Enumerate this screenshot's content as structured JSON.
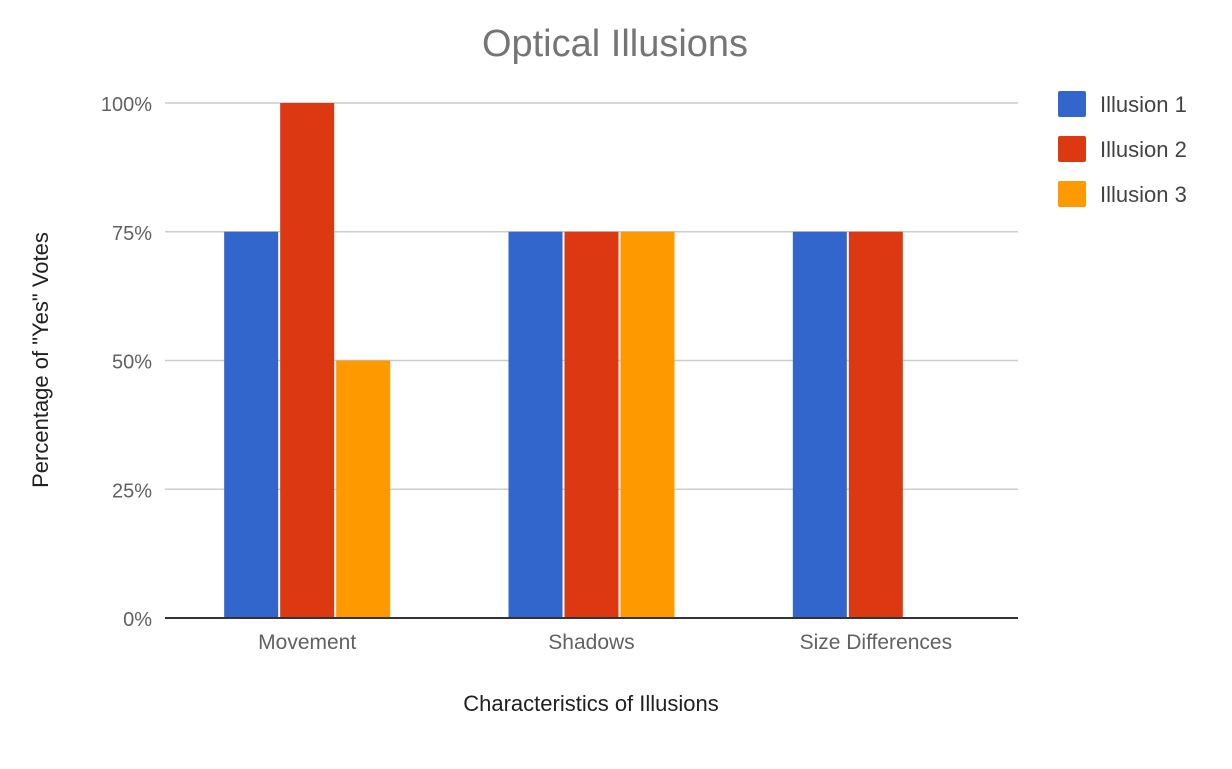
{
  "chart_data": {
    "type": "bar",
    "title": "Optical Illusions",
    "xlabel": "Characteristics of Illusions",
    "ylabel": "Percentage of \"Yes\" Votes",
    "categories": [
      "Movement",
      "Shadows",
      "Size Differences"
    ],
    "series": [
      {
        "name": "Illusion 1",
        "values": [
          75,
          75,
          75
        ],
        "color": "#3366cc"
      },
      {
        "name": "Illusion 2",
        "values": [
          100,
          75,
          75
        ],
        "color": "#dc3912"
      },
      {
        "name": "Illusion 3",
        "values": [
          50,
          75,
          0
        ],
        "color": "#ff9900"
      }
    ],
    "ylim": [
      0,
      100
    ],
    "y_ticks": [
      0,
      25,
      50,
      75,
      100
    ],
    "y_tick_labels": [
      "0%",
      "25%",
      "50%",
      "75%",
      "100%"
    ],
    "grid": true,
    "legend_position": "right"
  }
}
